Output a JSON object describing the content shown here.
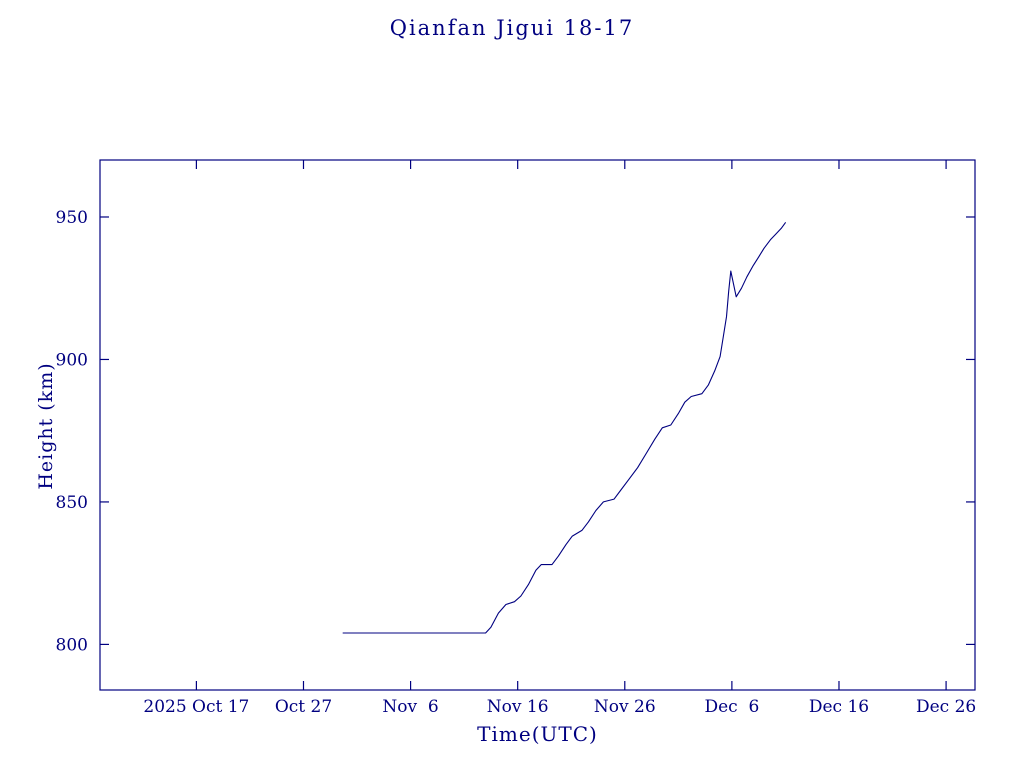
{
  "page": {
    "background": "#ffffff",
    "accent": "#000080"
  },
  "chart_data": {
    "type": "line",
    "title": "Qianfan Jigui 18-17",
    "xlabel": "Time(UTC)",
    "ylabel": "Height (km)",
    "x_unit": "days since 2025-10-08 00:00 UTC",
    "xlim": [
      0,
      81.7
    ],
    "ylim": [
      784,
      970
    ],
    "grid": false,
    "legend": "none",
    "line_color": "#000080",
    "x_ticks": [
      {
        "d": 9,
        "label": "2025 Oct 17"
      },
      {
        "d": 19,
        "label": "Oct 27"
      },
      {
        "d": 29,
        "label": "Nov  6"
      },
      {
        "d": 39,
        "label": "Nov 16"
      },
      {
        "d": 49,
        "label": "Nov 26"
      },
      {
        "d": 59,
        "label": "Dec  6"
      },
      {
        "d": 69,
        "label": "Dec 16"
      },
      {
        "d": 79,
        "label": "Dec 26"
      }
    ],
    "y_ticks": [
      800,
      850,
      900,
      950
    ],
    "series": [
      {
        "name": "Qianfan Jigui 18-17 height",
        "points": [
          [
            22.7,
            804
          ],
          [
            36.0,
            804
          ],
          [
            36.5,
            806
          ],
          [
            37.2,
            811
          ],
          [
            37.9,
            814
          ],
          [
            38.7,
            815
          ],
          [
            39.3,
            817
          ],
          [
            40.0,
            821
          ],
          [
            40.7,
            826
          ],
          [
            41.2,
            828
          ],
          [
            42.2,
            828
          ],
          [
            42.8,
            831
          ],
          [
            43.5,
            835
          ],
          [
            44.1,
            838
          ],
          [
            45.0,
            840
          ],
          [
            45.6,
            843
          ],
          [
            46.3,
            847
          ],
          [
            47.0,
            850
          ],
          [
            48.0,
            851
          ],
          [
            48.6,
            854
          ],
          [
            49.4,
            858
          ],
          [
            50.2,
            862
          ],
          [
            51.0,
            867
          ],
          [
            51.8,
            872
          ],
          [
            52.5,
            876
          ],
          [
            53.3,
            877
          ],
          [
            54.0,
            881
          ],
          [
            54.6,
            885
          ],
          [
            55.2,
            887
          ],
          [
            56.2,
            888
          ],
          [
            56.8,
            891
          ],
          [
            57.4,
            896
          ],
          [
            57.9,
            901
          ],
          [
            58.2,
            908
          ],
          [
            58.5,
            915
          ],
          [
            58.7,
            924
          ],
          [
            58.9,
            931
          ],
          [
            59.4,
            922
          ],
          [
            59.9,
            925
          ],
          [
            60.4,
            929
          ],
          [
            61.0,
            933
          ],
          [
            61.5,
            936
          ],
          [
            62.0,
            939
          ],
          [
            62.6,
            942
          ],
          [
            63.1,
            944
          ],
          [
            63.6,
            946
          ],
          [
            64.0,
            948
          ]
        ]
      }
    ]
  }
}
